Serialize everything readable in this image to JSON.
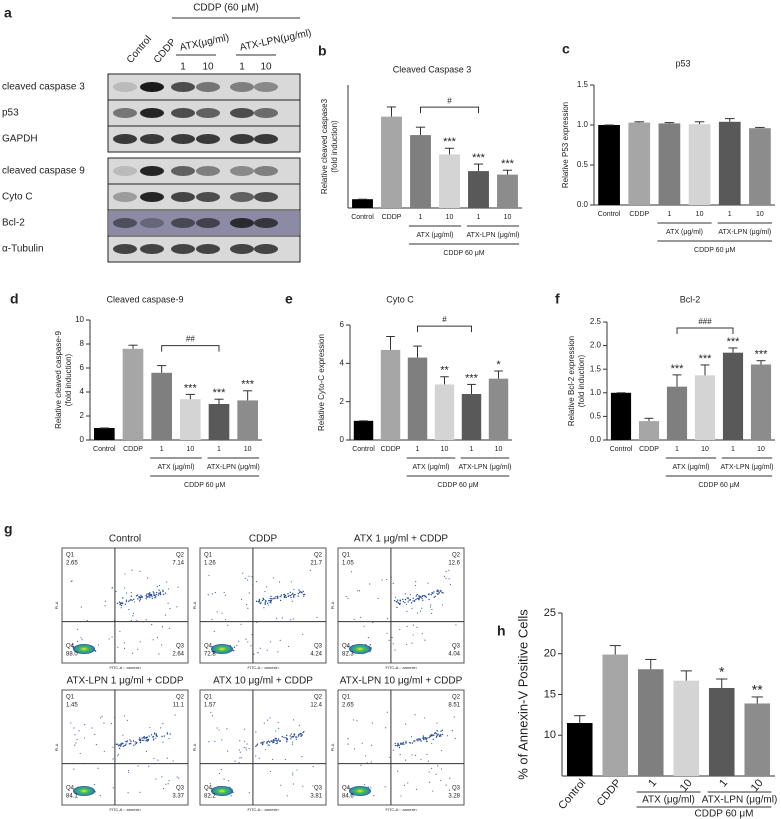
{
  "chart_data": [
    {
      "type": "bar",
      "panel_label": "b",
      "title": "Cleaved Caspase 3",
      "y_label": [
        "Relative cleaved caspase3",
        "(fold induction)"
      ],
      "categories": [
        "Control",
        "CDDP",
        "1",
        "10",
        "1",
        "10"
      ],
      "values": [
        1,
        10.4,
        8.3,
        6.1,
        4.2,
        3.8
      ],
      "errors": [
        0,
        1.1,
        0.9,
        0.7,
        0.8,
        0.5
      ],
      "colors": [
        "#000000",
        "#a6a6a6",
        "#7f7f7f",
        "#d4d4d4",
        "#595959",
        "#8c8c8c"
      ],
      "annotations": [
        null,
        null,
        null,
        "***",
        "***",
        "***"
      ],
      "bracket": {
        "label": "#",
        "between": [
          2,
          4
        ]
      },
      "group_labels": [
        "ATX (μg/ml)",
        "ATX-LPN (μg/ml)"
      ],
      "treatment_label": "CDDP 60 μM",
      "ylim": [
        0,
        14
      ]
    },
    {
      "type": "bar",
      "panel_label": "c",
      "title": "p53",
      "y_label": [
        "Relative P53 expression"
      ],
      "categories": [
        "Control",
        "CDDP",
        "1",
        "10",
        "1",
        "10"
      ],
      "values": [
        1,
        1.03,
        1.02,
        1.01,
        1.04,
        0.96
      ],
      "errors": [
        0,
        0.01,
        0.01,
        0.03,
        0.04,
        0.01
      ],
      "colors": [
        "#000000",
        "#a6a6a6",
        "#7f7f7f",
        "#d4d4d4",
        "#595959",
        "#8c8c8c"
      ],
      "annotations": [
        null,
        null,
        null,
        null,
        null,
        null
      ],
      "group_labels": [
        "ATX (μg/ml)",
        "ATX-LPN (μg/ml)"
      ],
      "treatment_label": "CDDP 60 μM",
      "ylim": [
        0,
        1.5
      ],
      "yticks": [
        {
          "value": 0,
          "label": "0.0"
        },
        0.5,
        {
          "value": 1,
          "label": "1.0"
        },
        1.5
      ]
    },
    {
      "type": "bar",
      "panel_label": "d",
      "title": "Cleaved caspase-9",
      "y_label": [
        "Relative cleaved caspase-9",
        "(fold induction)"
      ],
      "categories": [
        "Control",
        "CDDP",
        "1",
        "10",
        "1",
        "10"
      ],
      "values": [
        1,
        7.6,
        5.6,
        3.4,
        3.0,
        3.3
      ],
      "errors": [
        0,
        0.3,
        0.6,
        0.4,
        0.4,
        0.8
      ],
      "colors": [
        "#000000",
        "#a6a6a6",
        "#7f7f7f",
        "#d4d4d4",
        "#595959",
        "#8c8c8c"
      ],
      "annotations": [
        null,
        null,
        null,
        "***",
        "***",
        "***"
      ],
      "bracket": {
        "label": "##",
        "between": [
          2,
          4
        ]
      },
      "group_labels": [
        "ATX (μg/ml)",
        "ATX-LPN (μg/ml)"
      ],
      "treatment_label": "CDDP 60 μM",
      "ylim": [
        0,
        10
      ],
      "yticks": [
        0,
        2,
        4,
        6,
        8,
        10
      ]
    },
    {
      "type": "bar",
      "panel_label": "e",
      "title": "Cyto C",
      "y_label": [
        "Relative Cyto-C expression"
      ],
      "categories": [
        "Control",
        "CDDP",
        "1",
        "10",
        "1",
        "10"
      ],
      "values": [
        1,
        4.7,
        4.3,
        2.9,
        2.4,
        3.2
      ],
      "errors": [
        0,
        0.7,
        0.6,
        0.4,
        0.5,
        0.4
      ],
      "colors": [
        "#000000",
        "#a6a6a6",
        "#7f7f7f",
        "#d4d4d4",
        "#595959",
        "#8c8c8c"
      ],
      "annotations": [
        null,
        null,
        null,
        "**",
        "***",
        "*"
      ],
      "bracket": {
        "label": "#",
        "between": [
          2,
          4
        ]
      },
      "group_labels": [
        "ATX (μg/ml)",
        "ATX-LPN (μg/ml)"
      ],
      "treatment_label": "CDDP 60 μM",
      "ylim": [
        0,
        6
      ],
      "yticks": [
        0,
        2,
        4,
        6
      ]
    },
    {
      "type": "bar",
      "panel_label": "f",
      "title": "Bcl-2",
      "y_label": [
        "Relative Bcl-2 expression",
        "(fold induction)"
      ],
      "categories": [
        "Control",
        "CDDP",
        "1",
        "10",
        "1",
        "10"
      ],
      "values": [
        1,
        0.4,
        1.13,
        1.37,
        1.85,
        1.6
      ],
      "errors": [
        0,
        0.06,
        0.25,
        0.22,
        0.1,
        0.08
      ],
      "colors": [
        "#000000",
        "#a6a6a6",
        "#7f7f7f",
        "#d4d4d4",
        "#595959",
        "#8c8c8c"
      ],
      "annotations": [
        null,
        null,
        "***",
        "***",
        "***",
        "***"
      ],
      "bracket": {
        "label": "###",
        "between": [
          2,
          4
        ]
      },
      "group_labels": [
        "ATX (μg/ml)",
        "ATX-LPN (μg/ml)"
      ],
      "treatment_label": "CDDP 60 μM",
      "ylim": [
        0,
        2.5
      ],
      "yticks": [
        {
          "value": 0,
          "label": "0.0"
        },
        0.5,
        {
          "value": 1,
          "label": "1.0"
        },
        1.5,
        {
          "value": 2,
          "label": "2.0"
        },
        2.5
      ]
    },
    {
      "type": "bar",
      "panel_label": "h",
      "y_label": [
        "% of Annexin-V Positive Cells"
      ],
      "categories": [
        "Control",
        "CDDP",
        "1",
        "10",
        "1",
        "10"
      ],
      "values": [
        11.5,
        19.9,
        18.1,
        16.7,
        15.8,
        13.9
      ],
      "errors": [
        0.9,
        1.1,
        1.2,
        1.2,
        1.1,
        0.8
      ],
      "colors": [
        "#000000",
        "#a6a6a6",
        "#7f7f7f",
        "#d4d4d4",
        "#595959",
        "#8c8c8c"
      ],
      "annotations": [
        null,
        null,
        null,
        null,
        "*",
        "**"
      ],
      "group_labels": [
        "ATX (μg/ml)",
        "ATX-LPN (μg/ml)"
      ],
      "treatment_label": "CDDP 60 μM",
      "ylim": [
        5,
        25
      ],
      "yticks": [
        10,
        15,
        20,
        25
      ]
    }
  ],
  "blot": {
    "panel_label": "a",
    "header": "CDDP (60 μM)",
    "lanes": [
      "Control",
      "CDDP"
    ],
    "groups": [
      "ATX(μg/ml)",
      "ATX-LPN(μg/ml)"
    ],
    "doses": [
      "1",
      "10",
      "1",
      "10"
    ],
    "blocks": [
      [
        "cleaved caspase 3",
        "p53",
        "GAPDH"
      ],
      [
        "cleaved caspase 9",
        "Cyto C",
        "Bcl-2",
        "α-Tubulin"
      ]
    ]
  },
  "flow": {
    "panel_label": "g",
    "quadrant_names": [
      "Q1",
      "Q2",
      "Q3",
      "Q4"
    ],
    "x_label": "FITC-A :: annexin",
    "y_label": "PI-A",
    "plots": [
      {
        "title": "Control",
        "quadrants": [
          "2.65",
          "7.14",
          "2.64",
          "88.0"
        ]
      },
      {
        "title": "CDDP",
        "quadrants": [
          "1.26",
          "21.7",
          "4.24",
          "72.8"
        ]
      },
      {
        "title": "ATX 1 μg/ml + CDDP",
        "quadrants": [
          "1.05",
          "12.6",
          "4.04",
          "82.3"
        ]
      },
      {
        "title": "ATX-LPN 1 μg/ml + CDDP",
        "quadrants": [
          "1.45",
          "11.1",
          "3.37",
          "84.1"
        ]
      },
      {
        "title": "ATX 10 μg/ml + CDDP",
        "quadrants": [
          "1.57",
          "12.4",
          "3.81",
          "82.2"
        ]
      },
      {
        "title": "ATX-LPN 10 μg/ml + CDDP",
        "quadrants": [
          "2.65",
          "8.51",
          "3.28",
          "84.6"
        ]
      }
    ]
  }
}
